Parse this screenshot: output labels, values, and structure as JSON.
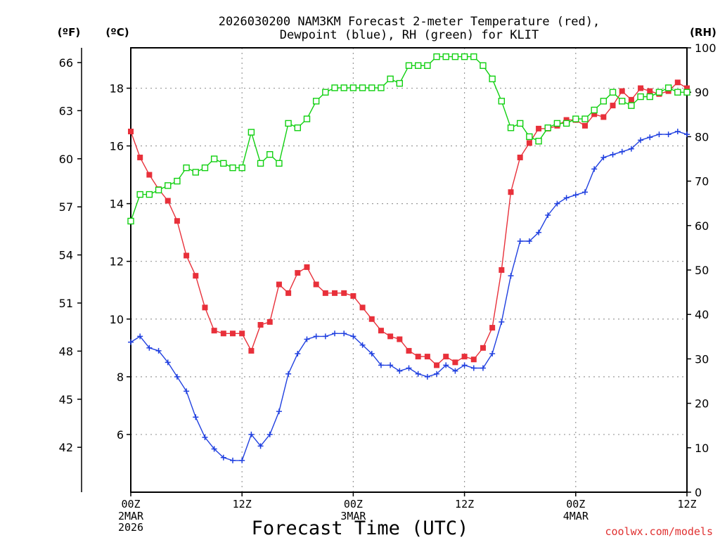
{
  "chart_data": {
    "type": "line",
    "title_line1": "2026030200 NAM3KM Forecast 2-meter Temperature (red),",
    "title_line2": "Dewpoint (blue), RH (green) for KLIT",
    "xlabel": "Forecast Time (UTC)",
    "watermark": "coolwx.com/models",
    "units": {
      "fahrenheit": "(ºF)",
      "celsius": "(ºC)",
      "rh": "(RH)"
    },
    "x_range_hours": [
      0,
      60
    ],
    "x_ticks": [
      {
        "hour": 0,
        "label": "00Z",
        "sub1": "2MAR",
        "sub2": "2026"
      },
      {
        "hour": 12,
        "label": "12Z",
        "sub1": "",
        "sub2": ""
      },
      {
        "hour": 24,
        "label": "00Z",
        "sub1": "3MAR",
        "sub2": ""
      },
      {
        "hour": 36,
        "label": "12Z",
        "sub1": "",
        "sub2": ""
      },
      {
        "hour": 48,
        "label": "00Z",
        "sub1": "4MAR",
        "sub2": ""
      },
      {
        "hour": 60,
        "label": "12Z",
        "sub1": "",
        "sub2": ""
      }
    ],
    "celsius_range": [
      4,
      19.4
    ],
    "celsius_ticks": [
      "6",
      "8",
      "10",
      "12",
      "14",
      "16",
      "18"
    ],
    "fahrenheit_ticks": [
      "42",
      "45",
      "48",
      "51",
      "54",
      "57",
      "60",
      "63",
      "66"
    ],
    "rh_range": [
      0,
      100
    ],
    "rh_ticks": [
      "0",
      "10",
      "20",
      "30",
      "40",
      "50",
      "60",
      "70",
      "80",
      "90",
      "100"
    ],
    "x_hours": [
      0,
      1,
      2,
      3,
      4,
      5,
      6,
      7,
      8,
      9,
      10,
      11,
      12,
      13,
      14,
      15,
      16,
      17,
      18,
      19,
      20,
      21,
      22,
      23,
      24,
      25,
      26,
      27,
      28,
      29,
      30,
      31,
      32,
      33,
      34,
      35,
      36,
      37,
      38,
      39,
      40,
      41,
      42,
      43,
      44,
      45,
      46,
      47,
      48,
      49,
      50,
      51,
      52,
      53,
      54,
      55,
      56,
      57,
      58,
      59,
      60
    ],
    "series": [
      {
        "name": "Temperature",
        "unit": "C",
        "color": "#e8303a",
        "marker": "filled-square",
        "values": [
          16.5,
          15.6,
          15.0,
          14.5,
          14.1,
          13.4,
          12.2,
          11.5,
          10.4,
          9.6,
          9.5,
          9.5,
          9.5,
          8.9,
          9.8,
          9.9,
          11.2,
          10.9,
          11.6,
          11.8,
          11.2,
          10.9,
          10.9,
          10.9,
          10.8,
          10.4,
          10.0,
          9.6,
          9.4,
          9.3,
          8.9,
          8.7,
          8.7,
          8.4,
          8.7,
          8.5,
          8.7,
          8.6,
          9.0,
          9.7,
          11.7,
          14.4,
          15.6,
          16.1,
          16.6,
          16.6,
          16.7,
          16.9,
          16.9,
          16.7,
          17.1,
          17.0,
          17.4,
          17.9,
          17.6,
          18.0,
          17.9,
          17.8,
          17.9,
          18.2,
          18.0
        ]
      },
      {
        "name": "Dewpoint",
        "unit": "C",
        "color": "#2040e0",
        "marker": "plus",
        "values": [
          9.2,
          9.4,
          9.0,
          8.9,
          8.5,
          8.0,
          7.5,
          6.6,
          5.9,
          5.5,
          5.2,
          5.1,
          5.1,
          6.0,
          5.6,
          6.0,
          6.8,
          8.1,
          8.8,
          9.3,
          9.4,
          9.4,
          9.5,
          9.5,
          9.4,
          9.1,
          8.8,
          8.4,
          8.4,
          8.2,
          8.3,
          8.1,
          8.0,
          8.1,
          8.4,
          8.2,
          8.4,
          8.3,
          8.3,
          8.8,
          9.9,
          11.5,
          12.7,
          12.7,
          13.0,
          13.6,
          14.0,
          14.2,
          14.3,
          14.4,
          15.2,
          15.6,
          15.7,
          15.8,
          15.9,
          16.2,
          16.3,
          16.4,
          16.4,
          16.5,
          16.4
        ]
      },
      {
        "name": "RH",
        "unit": "%",
        "color": "#10d010",
        "marker": "open-square",
        "values": [
          61,
          67,
          67,
          68,
          69,
          70,
          73,
          72,
          73,
          75,
          74,
          73,
          73,
          81,
          74,
          76,
          74,
          83,
          82,
          84,
          88,
          90,
          91,
          91,
          91,
          91,
          91,
          91,
          93,
          92,
          96,
          96,
          96,
          98,
          98,
          98,
          98,
          98,
          96,
          93,
          88,
          82,
          83,
          80,
          79,
          82,
          83,
          83,
          84,
          84,
          86,
          88,
          90,
          88,
          87,
          89,
          89,
          90,
          91,
          90,
          90
        ]
      }
    ]
  }
}
